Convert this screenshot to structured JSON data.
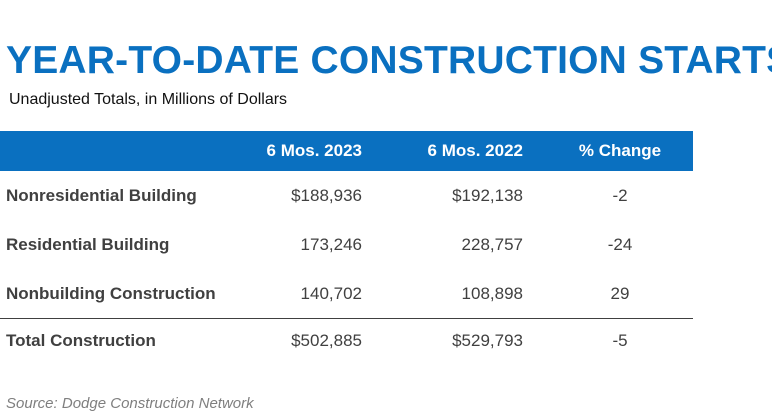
{
  "title": "YEAR-TO-DATE CONSTRUCTION STARTS",
  "subtitle": "Unadjusted Totals, in Millions of Dollars",
  "table": {
    "headers": [
      "",
      "6 Mos. 2023",
      "6 Mos. 2022",
      "% Change"
    ],
    "rows": [
      [
        "Nonresidential Building",
        "$188,936",
        "$192,138",
        "-2"
      ],
      [
        "Residential Building",
        "173,246",
        "228,757",
        "-24"
      ],
      [
        "Nonbuilding Construction",
        "140,702",
        "108,898",
        "29"
      ]
    ],
    "total": [
      "Total Construction",
      "$502,885",
      "$529,793",
      "-5"
    ]
  },
  "source": "Source: Dodge Construction Network",
  "colors": {
    "accent": "#0a70c0",
    "text": "#404040",
    "source": "#7f7f7f"
  }
}
